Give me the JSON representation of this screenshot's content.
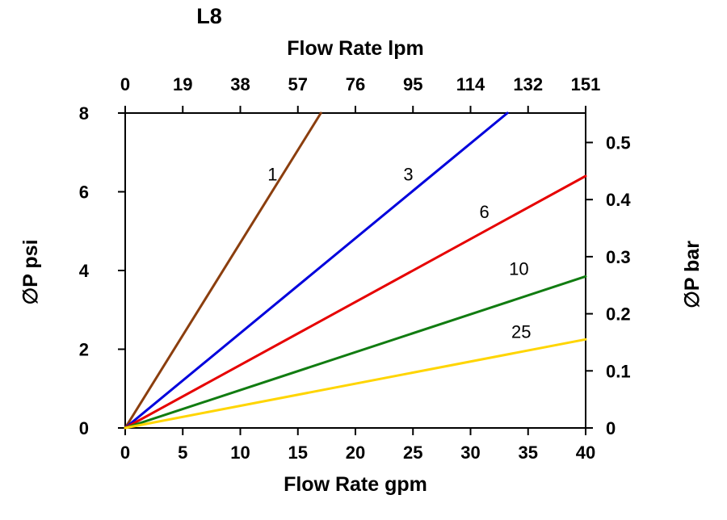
{
  "chart_data": {
    "type": "line",
    "title": "L8",
    "top_axis": {
      "label": "Flow Rate lpm",
      "ticks": [
        "0",
        "19",
        "38",
        "57",
        "76",
        "95",
        "114",
        "132",
        "151"
      ]
    },
    "bottom_axis": {
      "label": "Flow Rate gpm",
      "ticks": [
        0,
        5,
        10,
        15,
        20,
        25,
        30,
        35,
        40
      ],
      "range": [
        0,
        40
      ]
    },
    "left_axis": {
      "label": "∅P psi",
      "ticks": [
        0,
        2,
        4,
        6,
        8
      ],
      "range": [
        0,
        8
      ]
    },
    "right_axis": {
      "label": "∅P bar",
      "ticks": [
        0,
        0.1,
        0.2,
        0.3,
        0.4,
        0.5
      ],
      "psi_per_bar": 14.5038
    },
    "grid": false,
    "legend": "none",
    "series": [
      {
        "name": "1",
        "color": "#8B3E0E",
        "points": [
          [
            0,
            0
          ],
          [
            17,
            8
          ]
        ],
        "label_at": [
          12.8,
          6.45
        ]
      },
      {
        "name": "3",
        "color": "#0000DC",
        "points": [
          [
            0,
            0
          ],
          [
            33.2,
            8
          ]
        ],
        "label_at": [
          24.6,
          6.45
        ]
      },
      {
        "name": "6",
        "color": "#E60000",
        "points": [
          [
            0,
            0
          ],
          [
            40,
            6.4
          ]
        ],
        "label_at": [
          31.2,
          5.5
        ]
      },
      {
        "name": "10",
        "color": "#117C11",
        "points": [
          [
            0,
            0
          ],
          [
            40,
            3.85
          ]
        ],
        "label_at": [
          34.2,
          4.05
        ]
      },
      {
        "name": "25",
        "color": "#FFD500",
        "points": [
          [
            0,
            0
          ],
          [
            40,
            2.25
          ]
        ],
        "label_at": [
          34.4,
          2.45
        ]
      }
    ]
  }
}
